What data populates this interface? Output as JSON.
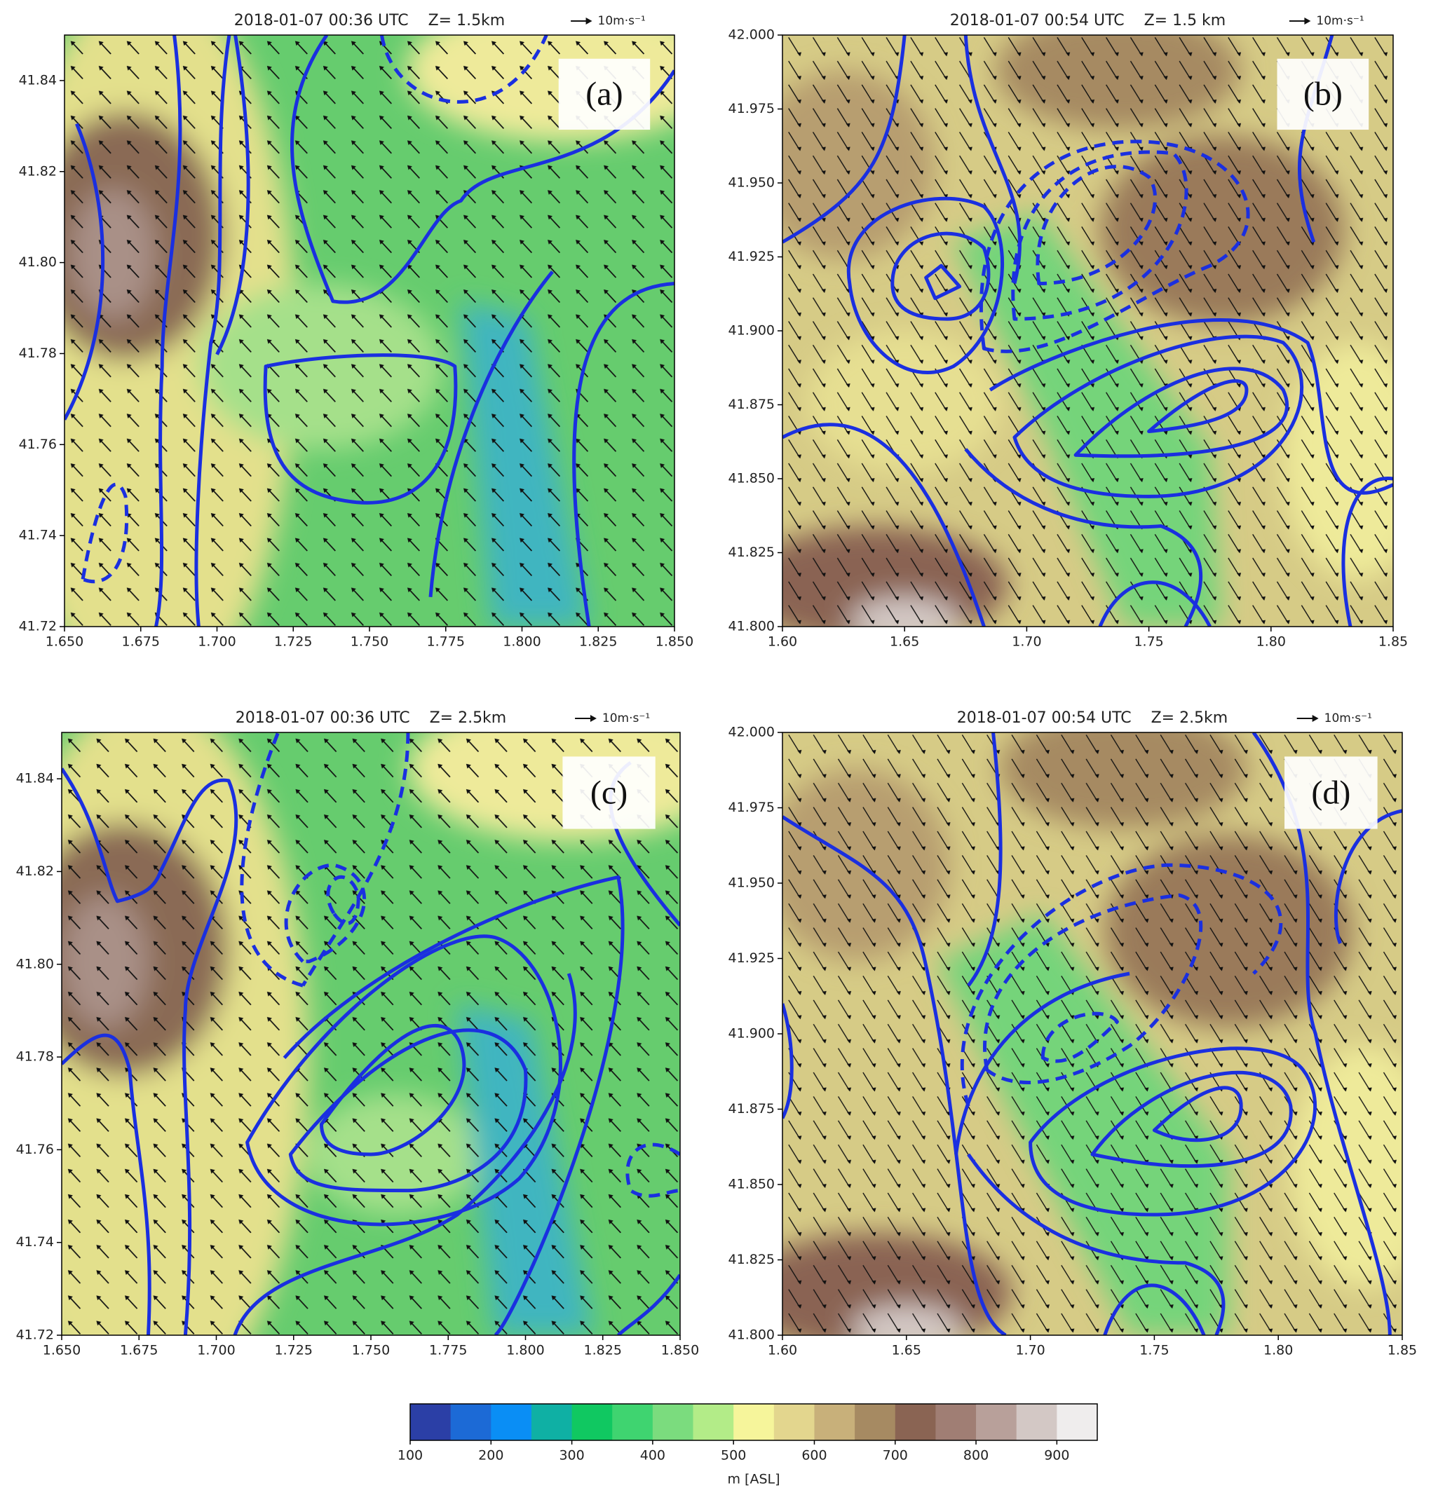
{
  "chart_data": [
    {
      "type": "map",
      "title": "2018-01-07 00:36 UTC    Z= 1.5km",
      "panel_label": "(a)",
      "key_label": "10m·s⁻¹",
      "xlim": [
        1.65,
        1.85
      ],
      "xticks": [
        {
          "value": 1.65,
          "label": "1.650"
        },
        1.675,
        {
          "value": 1.7,
          "label": "1.700"
        },
        1.725,
        {
          "value": 1.75,
          "label": "1.750"
        },
        1.775,
        {
          "value": 1.8,
          "label": "1.800"
        },
        1.825,
        {
          "value": 1.85,
          "label": "1.850"
        }
      ],
      "ylim": [
        41.72,
        41.85
      ],
      "yticks": [
        41.72,
        41.74,
        41.76,
        41.78,
        {
          "value": 41.8,
          "label": "41.80"
        },
        41.82,
        41.84
      ]
    },
    {
      "type": "map",
      "title": "2018-01-07 00:54 UTC    Z= 1.5 km",
      "panel_label": "(b)",
      "key_label": "10m·s⁻¹",
      "xlim": [
        1.6,
        1.85
      ],
      "xticks": [
        {
          "value": 1.6,
          "label": "1.60"
        },
        1.65,
        {
          "value": 1.7,
          "label": "1.70"
        },
        1.75,
        {
          "value": 1.8,
          "label": "1.80"
        },
        1.85
      ],
      "ylim": [
        41.8,
        42.0
      ],
      "yticks": [
        {
          "value": 41.8,
          "label": "41.800"
        },
        41.825,
        {
          "value": 41.85,
          "label": "41.850"
        },
        41.875,
        {
          "value": 41.9,
          "label": "41.900"
        },
        41.925,
        {
          "value": 41.95,
          "label": "41.950"
        },
        41.975,
        {
          "value": 42.0,
          "label": "42.000"
        }
      ]
    },
    {
      "type": "map",
      "title": "2018-01-07 00:36 UTC    Z= 2.5km",
      "panel_label": "(c)",
      "key_label": "10m·s⁻¹",
      "xlim": [
        1.65,
        1.85
      ],
      "xticks": [
        {
          "value": 1.65,
          "label": "1.650"
        },
        1.675,
        {
          "value": 1.7,
          "label": "1.700"
        },
        1.725,
        {
          "value": 1.75,
          "label": "1.750"
        },
        1.775,
        {
          "value": 1.8,
          "label": "1.800"
        },
        1.825,
        {
          "value": 1.85,
          "label": "1.850"
        }
      ],
      "ylim": [
        41.72,
        41.85
      ],
      "yticks": [
        41.72,
        41.74,
        41.76,
        41.78,
        {
          "value": 41.8,
          "label": "41.80"
        },
        41.82,
        41.84
      ]
    },
    {
      "type": "map",
      "title": "2018-01-07 00:54 UTC    Z= 2.5km",
      "panel_label": "(d)",
      "key_label": "10m·s⁻¹",
      "xlim": [
        1.6,
        1.85
      ],
      "xticks": [
        {
          "value": 1.6,
          "label": "1.60"
        },
        1.65,
        {
          "value": 1.7,
          "label": "1.70"
        },
        1.75,
        {
          "value": 1.8,
          "label": "1.80"
        },
        1.85
      ],
      "ylim": [
        41.8,
        42.0
      ],
      "yticks": [
        {
          "value": 41.8,
          "label": "41.800"
        },
        41.825,
        {
          "value": 41.85,
          "label": "41.850"
        },
        41.875,
        {
          "value": 41.9,
          "label": "41.900"
        },
        41.925,
        {
          "value": 41.95,
          "label": "41.950"
        },
        41.975,
        {
          "value": 42.0,
          "label": "42.000"
        }
      ]
    },
    {
      "type": "colorbar",
      "label": "m [ASL]",
      "bins": [
        100,
        150,
        200,
        250,
        300,
        350,
        400,
        450,
        500,
        550,
        600,
        650,
        700,
        750,
        800,
        850,
        900,
        950
      ],
      "colors": [
        "#2b3fa6",
        "#1c6ad6",
        "#0a8ef5",
        "#0fb0a4",
        "#10c861",
        "#3fd470",
        "#7bdc7e",
        "#b3ec88",
        "#f6f59b",
        "#e3d68e",
        "#c8b07a",
        "#a68a62",
        "#8a6453",
        "#a07e74",
        "#b8a09a",
        "#d3c8c5",
        "#efeded"
      ],
      "ticks": [
        100,
        200,
        300,
        400,
        500,
        600,
        700,
        800,
        900
      ]
    }
  ]
}
